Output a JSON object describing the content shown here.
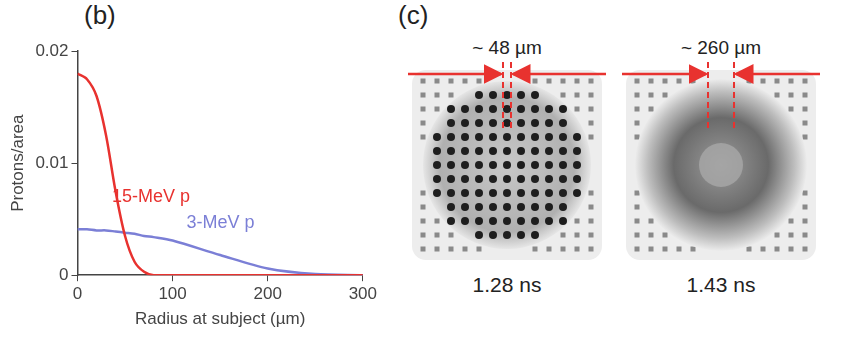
{
  "chart_data": {
    "type": "line",
    "panel_label": "(b)",
    "x_label": "Radius at subject (µm)",
    "y_label": "Protons/area",
    "x": [
      0,
      10,
      20,
      30,
      40,
      50,
      60,
      70,
      80,
      100,
      150,
      200,
      250,
      300
    ],
    "series": [
      {
        "name": "15-MeV p",
        "color": "#e8322f",
        "values": [
          0.018,
          0.0175,
          0.016,
          0.0125,
          0.0075,
          0.0035,
          0.0012,
          0.0003,
          0,
          0,
          0,
          0,
          0,
          0
        ]
      },
      {
        "name": "3-MeV p",
        "color": "#7b7fd6",
        "values": [
          0.0041,
          0.0041,
          0.004,
          0.004,
          0.0039,
          0.0038,
          0.0037,
          0.0035,
          0.0034,
          0.0031,
          0.0018,
          0.0006,
          0.0001,
          0
        ]
      }
    ],
    "xlim": [
      0,
      300
    ],
    "xticks": [
      0,
      100,
      200,
      300
    ],
    "ylim": [
      0,
      0.02
    ],
    "yticks": [
      0,
      0.01,
      0.02
    ],
    "grid": false
  },
  "images_panel": {
    "panel_label": "(c)",
    "images": [
      {
        "size_label": "~ 48 µm",
        "time": "1.28 ns"
      },
      {
        "size_label": "~ 260 µm",
        "time": "1.43 ns"
      }
    ]
  }
}
